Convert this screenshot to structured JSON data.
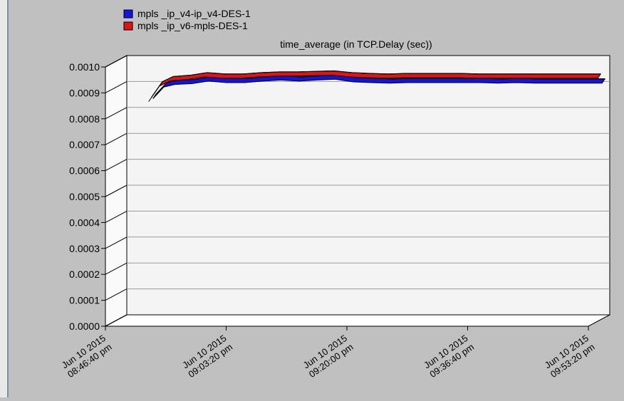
{
  "chart_data": {
    "type": "line",
    "title": "time_average (in TCP.Delay (sec))",
    "xlabel": "",
    "ylabel": "",
    "ylim": [
      0,
      0.001
    ],
    "yticks": [
      "0.0000",
      "0.0001",
      "0.0002",
      "0.0003",
      "0.0004",
      "0.0005",
      "0.0006",
      "0.0007",
      "0.0008",
      "0.0009",
      "0.0010"
    ],
    "xlim": [
      0,
      4000
    ],
    "xticks": [
      {
        "x": 0,
        "line1": "Jun 10 2015",
        "line2": "08:46:40 pm"
      },
      {
        "x": 1000,
        "line1": "Jun 10 2015",
        "line2": "09:03:20 pm"
      },
      {
        "x": 2000,
        "line1": "Jun 10 2015",
        "line2": "09:20:00 pm"
      },
      {
        "x": 3000,
        "line1": "Jun 10 2015",
        "line2": "09:36:40 pm"
      },
      {
        "x": 4000,
        "line1": "Jun 10 2015",
        "line2": "09:53:20 pm"
      }
    ],
    "grid": true,
    "legend_position": "top-left",
    "series": [
      {
        "name": "mpls _ip_v4-ip_v4-DES-1",
        "color": "#1414e0",
        "x": [
          240,
          330,
          420,
          560,
          700,
          850,
          1000,
          1150,
          1300,
          1450,
          1600,
          1750,
          1900,
          2050,
          2200,
          2350,
          2500,
          2650,
          2800,
          2950,
          3100,
          3250,
          3400,
          3550,
          3700,
          3850,
          3960
        ],
        "y": [
          0.00085,
          0.000895,
          0.000905,
          0.000908,
          0.000918,
          0.000912,
          0.000912,
          0.000918,
          0.000922,
          0.000918,
          0.000922,
          0.000925,
          0.000915,
          0.000912,
          0.00091,
          0.000912,
          0.000912,
          0.000912,
          0.000912,
          0.000912,
          0.00091,
          0.000912,
          0.00091,
          0.00091,
          0.00091,
          0.00091,
          0.00091
        ]
      },
      {
        "name": "mpls _ip_v6-mpls-DES-1",
        "color": "#e01414",
        "x": [
          240,
          330,
          420,
          560,
          700,
          850,
          1000,
          1150,
          1300,
          1450,
          1600,
          1750,
          1900,
          2050,
          2200,
          2350,
          2500,
          2650,
          2800,
          2950,
          3100,
          3250,
          3400,
          3550,
          3700,
          3850,
          3960
        ],
        "y": [
          0.00085,
          0.00091,
          0.00093,
          0.000935,
          0.000945,
          0.00094,
          0.00094,
          0.000945,
          0.000948,
          0.000948,
          0.00095,
          0.000952,
          0.000945,
          0.000942,
          0.00094,
          0.000942,
          0.000942,
          0.000942,
          0.000942,
          0.00094,
          0.00094,
          0.00094,
          0.00094,
          0.00094,
          0.00094,
          0.00094,
          0.00094
        ]
      }
    ]
  }
}
